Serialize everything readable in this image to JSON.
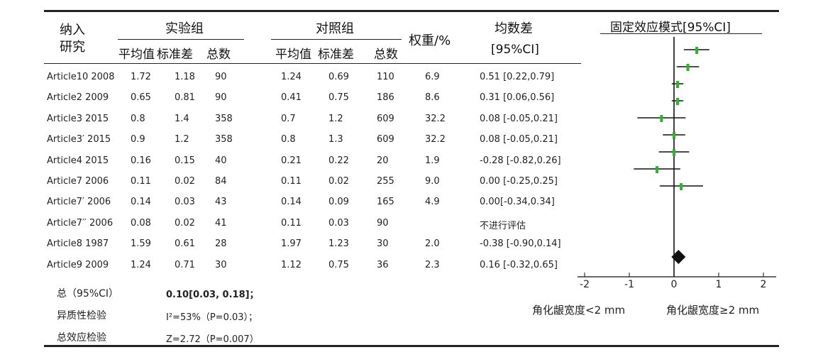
{
  "header": {
    "study_line1": "纳入",
    "study_line2": "研究",
    "exp_group": "实验组",
    "ctrl_group": "对照组",
    "weight": "权重/%",
    "md_line1": "均数差",
    "md_line2": "[95%CI]",
    "plot_title": "固定效应模式[95%CI]",
    "exp_cols": [
      "平均值",
      "标准差",
      "总数"
    ],
    "ctrl_cols": [
      "平均值",
      "标准差",
      "总数"
    ]
  },
  "rows": [
    {
      "study": "Article10 2008",
      "e_mean": "1.72",
      "e_sd": "1.18",
      "e_n": "90",
      "c_mean": "1.24",
      "c_sd": "0.69",
      "c_n": "110",
      "weight": "6.9",
      "md": "0.51 [0.22,0.79]"
    },
    {
      "study": "Article2  2009",
      "e_mean": "0.65",
      "e_sd": "0.81",
      "e_n": "90",
      "c_mean": "0.41",
      "c_sd": "0.75",
      "c_n": "186",
      "weight": "8.6",
      "md": "0.31 [0.06,0.56]"
    },
    {
      "study": "Article3  2015",
      "e_mean": "0.8",
      "e_sd": "1.4",
      "e_n": "358",
      "c_mean": "0.7",
      "c_sd": "1.2",
      "c_n": "609",
      "weight": "32.2",
      "md": "0.08 [-0.05,0.21]"
    },
    {
      "study": "Article3′ 2015",
      "e_mean": "0.9",
      "e_sd": "1.2",
      "e_n": "358",
      "c_mean": "0.8",
      "c_sd": "1.3",
      "c_n": "609",
      "weight": "32.2",
      "md": "0.08 [-0.05,0.21]"
    },
    {
      "study": "Article4  2015",
      "e_mean": "0.16",
      "e_sd": "0.15",
      "e_n": "40",
      "c_mean": "0.21",
      "c_sd": "0.22",
      "c_n": "20",
      "weight": "1.9",
      "md": "-0.28 [-0.82,0.26]"
    },
    {
      "study": "Article7  2006",
      "e_mean": "0.11",
      "e_sd": "0.02",
      "e_n": "84",
      "c_mean": "0.11",
      "c_sd": "0.02",
      "c_n": "255",
      "weight": "9.0",
      "md": "0.00 [-0.25,0.25]"
    },
    {
      "study": "Article7′ 2006",
      "e_mean": "0.14",
      "e_sd": "0.03",
      "e_n": "43",
      "c_mean": "0.14",
      "c_sd": "0.09",
      "c_n": "165",
      "weight": "4.9",
      "md": "0.00[-0.34,0.34]"
    },
    {
      "study": "Article7′′ 2006",
      "e_mean": "0.08",
      "e_sd": "0.02",
      "e_n": "41",
      "c_mean": "0.11",
      "c_sd": "0.03",
      "c_n": "90",
      "weight": "",
      "md": "不进行评估"
    },
    {
      "study": "Article8  1987",
      "e_mean": "1.59",
      "e_sd": "0.61",
      "e_n": "28",
      "c_mean": "1.97",
      "c_sd": "1.23",
      "c_n": "30",
      "weight": "2.0",
      "md": "-0.38 [-0.90,0.14]"
    },
    {
      "study": "Article9  2009",
      "e_mean": "1.24",
      "e_sd": "0.71",
      "e_n": "30",
      "c_mean": "1.12",
      "c_sd": "0.75",
      "c_n": "36",
      "weight": "2.3",
      "md": "0.16 [-0.32,0.65]"
    }
  ],
  "footer": {
    "total_label": "总（95%CI）",
    "total_value": "0.10[0.03, 0.18]；",
    "het_label": "异质性检验",
    "het_value": "I²=53%（P=0.03）；",
    "overall_label": "总效应检验",
    "overall_value": "Z=2.72（P=0.007）"
  },
  "chart_data": {
    "type": "forest",
    "title": "固定效应模式[95%CI]",
    "x_ticks": [
      "-2",
      "-1",
      "0",
      "1",
      "2"
    ],
    "xlim": [
      -2,
      2
    ],
    "left_label": "角化龈宽度<2 mm",
    "right_label": "角化龈宽度≥2 mm",
    "marker_color": "#2bb52b",
    "summary_color": "#111111",
    "studies": [
      {
        "md": 0.51,
        "lo": 0.22,
        "hi": 0.79
      },
      {
        "md": 0.31,
        "lo": 0.06,
        "hi": 0.56
      },
      {
        "md": 0.08,
        "lo": -0.05,
        "hi": 0.21
      },
      {
        "md": 0.08,
        "lo": -0.05,
        "hi": 0.21
      },
      {
        "md": -0.28,
        "lo": -0.82,
        "hi": 0.26
      },
      {
        "md": 0.0,
        "lo": -0.25,
        "hi": 0.25
      },
      {
        "md": 0.0,
        "lo": -0.34,
        "hi": 0.34
      },
      {
        "md": -0.38,
        "lo": -0.9,
        "hi": 0.14
      },
      {
        "md": 0.16,
        "lo": -0.32,
        "hi": 0.65
      }
    ],
    "summary": {
      "md": 0.1,
      "lo": 0.03,
      "hi": 0.18
    }
  }
}
